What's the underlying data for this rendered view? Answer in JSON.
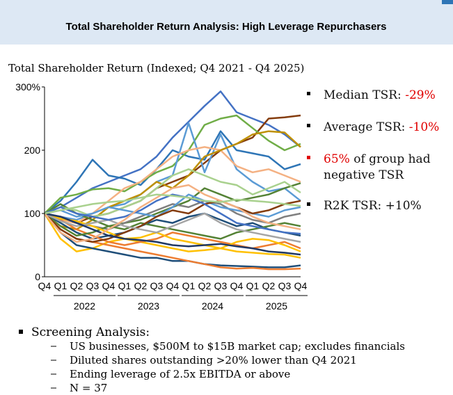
{
  "header": {
    "title": "Total Shareholder Return Analysis: High Leverage Repurchasers"
  },
  "chart_data": {
    "type": "line",
    "title": "Total Shareholder Return (Indexed; Q4 2021 - Q4 2025)",
    "categories": [
      "Q4",
      "Q1",
      "Q2",
      "Q3",
      "Q4",
      "Q1",
      "Q2",
      "Q3",
      "Q4",
      "Q1",
      "Q2",
      "Q3",
      "Q4",
      "Q1",
      "Q2",
      "Q3",
      "Q4"
    ],
    "year_labels": [
      "2022",
      "2023",
      "2024",
      "2025"
    ],
    "ylim": [
      0,
      300
    ],
    "yticks": [
      0,
      100,
      200,
      {
        "value": 300,
        "label": "300%"
      }
    ],
    "series": [
      {
        "color": "#4472c4",
        "values": [
          100,
          110,
          125,
          140,
          150,
          160,
          170,
          190,
          220,
          245,
          270,
          293,
          260,
          250,
          240,
          225,
          205
        ]
      },
      {
        "color": "#843c0c",
        "values": [
          100,
          90,
          85,
          95,
          100,
          110,
          120,
          140,
          150,
          160,
          180,
          200,
          210,
          220,
          250,
          252,
          255
        ]
      },
      {
        "color": "#2e75b6",
        "values": [
          100,
          120,
          150,
          185,
          160,
          155,
          145,
          170,
          200,
          190,
          185,
          230,
          200,
          195,
          190,
          170,
          178
        ]
      },
      {
        "color": "#70ad47",
        "values": [
          100,
          125,
          130,
          138,
          140,
          135,
          150,
          165,
          175,
          200,
          240,
          250,
          255,
          235,
          215,
          200,
          210
        ]
      },
      {
        "color": "#5b9bd5",
        "values": [
          100,
          95,
          90,
          100,
          110,
          115,
          130,
          150,
          160,
          243,
          165,
          225,
          170,
          150,
          135,
          140,
          120
        ]
      },
      {
        "color": "#f4b183",
        "values": [
          100,
          90,
          85,
          100,
          120,
          140,
          150,
          170,
          190,
          200,
          205,
          200,
          175,
          165,
          170,
          160,
          150
        ]
      },
      {
        "color": "#bf9000",
        "values": [
          100,
          80,
          75,
          90,
          110,
          120,
          130,
          150,
          140,
          160,
          190,
          200,
          210,
          225,
          230,
          228,
          205
        ]
      },
      {
        "color": "#ffc000",
        "values": [
          100,
          60,
          40,
          45,
          55,
          60,
          55,
          50,
          45,
          40,
          42,
          45,
          40,
          38,
          36,
          35,
          30
        ]
      },
      {
        "color": "#1f4e79",
        "values": [
          100,
          70,
          50,
          45,
          40,
          35,
          30,
          30,
          25,
          25,
          20,
          18,
          17,
          16,
          15,
          15,
          18
        ]
      },
      {
        "color": "#ed7d31",
        "values": [
          100,
          75,
          60,
          55,
          50,
          45,
          40,
          35,
          30,
          25,
          20,
          15,
          13,
          14,
          12,
          12,
          13
        ]
      },
      {
        "color": "#548235",
        "values": [
          100,
          115,
          100,
          90,
          80,
          85,
          90,
          100,
          110,
          120,
          140,
          130,
          120,
          125,
          130,
          140,
          148
        ]
      },
      {
        "color": "#a9d18e",
        "values": [
          100,
          110,
          105,
          95,
          100,
          110,
          120,
          140,
          160,
          170,
          160,
          150,
          145,
          130,
          140,
          150,
          133
        ]
      },
      {
        "color": "#1f4e79",
        "values": [
          100,
          85,
          70,
          60,
          65,
          70,
          80,
          90,
          85,
          95,
          100,
          90,
          80,
          85,
          75,
          70,
          65
        ]
      },
      {
        "color": "#7f7f7f",
        "values": [
          100,
          95,
          85,
          80,
          75,
          85,
          95,
          105,
          115,
          110,
          120,
          115,
          100,
          90,
          85,
          95,
          100
        ]
      },
      {
        "color": "#ed7d31",
        "values": [
          100,
          90,
          75,
          65,
          55,
          50,
          55,
          60,
          70,
          65,
          60,
          55,
          50,
          45,
          50,
          55,
          45
        ]
      },
      {
        "color": "#548235",
        "values": [
          100,
          80,
          65,
          70,
          80,
          75,
          85,
          80,
          75,
          70,
          65,
          60,
          70,
          75,
          80,
          85,
          80
        ]
      },
      {
        "color": "#5b9bd5",
        "values": [
          100,
          105,
          95,
          100,
          110,
          105,
          100,
          95,
          110,
          130,
          120,
          110,
          105,
          100,
          95,
          105,
          110
        ]
      },
      {
        "color": "#ffc000",
        "values": [
          100,
          92,
          88,
          80,
          70,
          60,
          62,
          70,
          60,
          55,
          50,
          45,
          55,
          60,
          58,
          50,
          40
        ]
      },
      {
        "color": "#843c0c",
        "values": [
          100,
          75,
          60,
          55,
          60,
          70,
          80,
          95,
          105,
          100,
          115,
          120,
          110,
          100,
          105,
          115,
          120
        ]
      },
      {
        "color": "#a5a5a5",
        "values": [
          100,
          88,
          80,
          85,
          90,
          80,
          75,
          70,
          80,
          90,
          100,
          85,
          75,
          70,
          65,
          60,
          55
        ]
      },
      {
        "color": "#4472c4",
        "values": [
          100,
          110,
          100,
          95,
          90,
          95,
          105,
          120,
          130,
          125,
          115,
          100,
          85,
          80,
          75,
          70,
          68
        ]
      },
      {
        "color": "#203864",
        "values": [
          100,
          95,
          85,
          75,
          65,
          60,
          58,
          55,
          50,
          48,
          50,
          52,
          48,
          45,
          40,
          38,
          35
        ]
      },
      {
        "color": "#f4b183",
        "values": [
          100,
          70,
          55,
          60,
          75,
          90,
          110,
          125,
          140,
          145,
          130,
          120,
          110,
          95,
          85,
          80,
          75
        ]
      },
      {
        "color": "#a9d18e",
        "values": [
          100,
          105,
          110,
          115,
          118,
          120,
          125,
          130,
          128,
          125,
          120,
          118,
          122,
          120,
          118,
          115,
          112
        ]
      }
    ]
  },
  "callouts": [
    {
      "label": "Median TSR:",
      "value": "-29%"
    },
    {
      "label": "Average TSR:",
      "value": "-10%"
    },
    {
      "value": "65%",
      "label": "of group had",
      "label_line2": "negative TSR"
    },
    {
      "label": "R2K TSR: +10%"
    }
  ],
  "screening": {
    "heading": "Screening Analysis:",
    "items": [
      "US businesses, $500M to $15B market cap; excludes financials",
      "Diluted shares outstanding >20% lower than Q4 2021",
      "Ending leverage of 2.5x EBITDA or above",
      "N = 37"
    ]
  }
}
